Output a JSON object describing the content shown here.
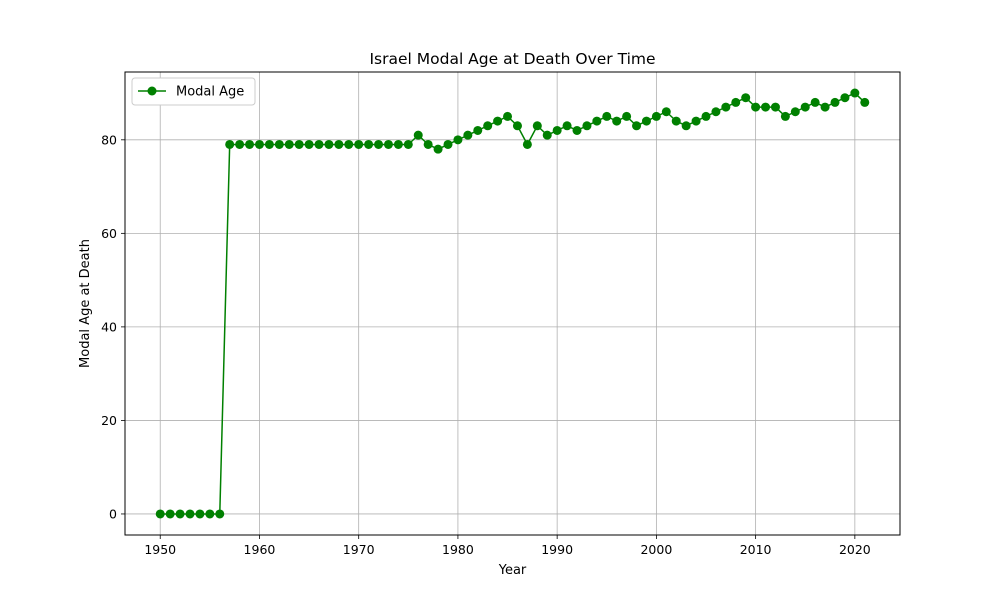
{
  "chart_data": {
    "type": "line",
    "title": "Israel Modal Age at Death Over Time",
    "xlabel": "Year",
    "ylabel": "Modal Age at Death",
    "xlim": [
      1946.45,
      2024.55
    ],
    "ylim": [
      -4.5,
      94.5
    ],
    "xticks": [
      1950,
      1960,
      1970,
      1980,
      1990,
      2000,
      2010,
      2020
    ],
    "yticks": [
      0,
      20,
      40,
      60,
      80
    ],
    "grid": true,
    "legend_position": "top-left",
    "series": [
      {
        "name": "Modal Age",
        "color": "#008000",
        "marker": "circle",
        "x": [
          1950,
          1951,
          1952,
          1953,
          1954,
          1955,
          1956,
          1957,
          1958,
          1959,
          1960,
          1961,
          1962,
          1963,
          1964,
          1965,
          1966,
          1967,
          1968,
          1969,
          1970,
          1971,
          1972,
          1973,
          1974,
          1975,
          1976,
          1977,
          1978,
          1979,
          1980,
          1981,
          1982,
          1983,
          1984,
          1985,
          1986,
          1987,
          1988,
          1989,
          1990,
          1991,
          1992,
          1993,
          1994,
          1995,
          1996,
          1997,
          1998,
          1999,
          2000,
          2001,
          2002,
          2003,
          2004,
          2005,
          2006,
          2007,
          2008,
          2009,
          2010,
          2011,
          2012,
          2013,
          2014,
          2015,
          2016,
          2017,
          2018,
          2019,
          2020,
          2021
        ],
        "y": [
          0,
          0,
          0,
          0,
          0,
          0,
          0,
          79,
          79,
          79,
          79,
          79,
          79,
          79,
          79,
          79,
          79,
          79,
          79,
          79,
          79,
          79,
          79,
          79,
          79,
          79,
          81,
          79,
          78,
          79,
          80,
          81,
          82,
          83,
          84,
          85,
          83,
          79,
          83,
          81,
          82,
          83,
          82,
          83,
          84,
          85,
          84,
          85,
          83,
          84,
          85,
          86,
          84,
          83,
          84,
          85,
          86,
          87,
          88,
          89,
          87,
          87,
          87,
          85,
          86,
          87,
          88,
          87,
          88,
          89,
          90,
          88
        ]
      }
    ]
  }
}
